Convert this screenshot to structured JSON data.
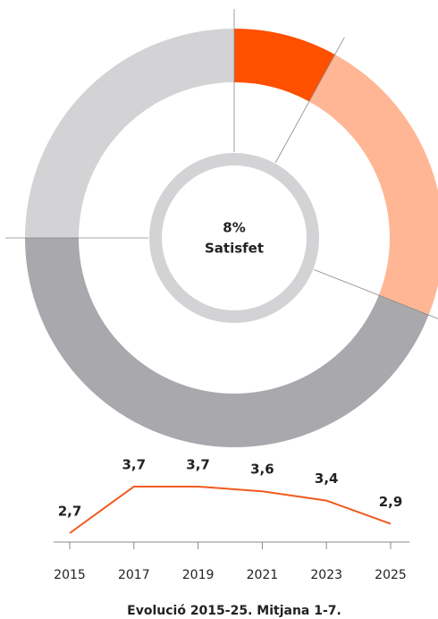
{
  "chart_data": [
    {
      "type": "donut",
      "center_label": "Satisfet",
      "values": [
        8,
        23,
        44,
        25
      ],
      "value_labels": [
        "8%",
        null,
        null,
        null
      ],
      "colors": [
        "#ff5000",
        "#ffb695",
        "#a9a9ad",
        "#d3d3d5"
      ]
    },
    {
      "type": "line",
      "title": "Evolució 2015-25. Mitjana 1-7.",
      "x": [
        2015,
        2017,
        2019,
        2021,
        2023,
        2025
      ],
      "values": [
        2.7,
        3.7,
        3.7,
        3.6,
        3.4,
        2.9
      ],
      "value_labels": [
        "2,7",
        "3,7",
        "3,7",
        "3,6",
        "3,4",
        "2,9"
      ],
      "xlim": [
        2015,
        2025
      ],
      "xticks": [
        2015,
        2017,
        2019,
        2021,
        2023,
        2025
      ],
      "color": "#f05a1e"
    }
  ]
}
